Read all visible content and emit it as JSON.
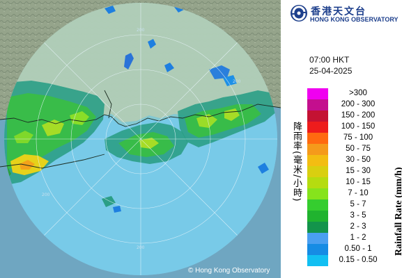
{
  "map": {
    "range_ring_label": "200",
    "copyright": "© Hong Kong Observatory"
  },
  "panel": {
    "logo_zh": "香港天文台",
    "logo_en": "HONG KONG OBSERVATORY",
    "time": "07:00 HKT",
    "date": "25-04-2025",
    "title_zh": "降雨率(毫米/小時)",
    "title_en": "Rainfall Rate (mm/h)"
  },
  "legend": [
    {
      "label": ">300",
      "color": "#f000f0"
    },
    {
      "label": "200 - 300",
      "color": "#c40f8e"
    },
    {
      "label": "150 - 200",
      "color": "#c41233"
    },
    {
      "label": "100 - 150",
      "color": "#ee1c1c"
    },
    {
      "label": "75 - 100",
      "color": "#ff6a10"
    },
    {
      "label": "50 - 75",
      "color": "#f59a1b"
    },
    {
      "label": "30 - 50",
      "color": "#f3bd12"
    },
    {
      "label": "15 - 30",
      "color": "#d9cf10"
    },
    {
      "label": "10 - 15",
      "color": "#b5dc10"
    },
    {
      "label": "7 - 10",
      "color": "#86e31c"
    },
    {
      "label": "5 - 7",
      "color": "#35cd2f"
    },
    {
      "label": "3 - 5",
      "color": "#20b32f"
    },
    {
      "label": "2 - 3",
      "color": "#13944b"
    },
    {
      "label": "1 - 2",
      "color": "#4a9ff0"
    },
    {
      "label": "0.50 - 1",
      "color": "#168ce4"
    },
    {
      "label": "0.15 - 0.50",
      "color": "#12bff2"
    }
  ],
  "colors": {
    "land": "#8c9c84",
    "sea": "#6fa6c1",
    "radar_circle": "#9cd8f0",
    "brand": "#1d3f8c"
  }
}
